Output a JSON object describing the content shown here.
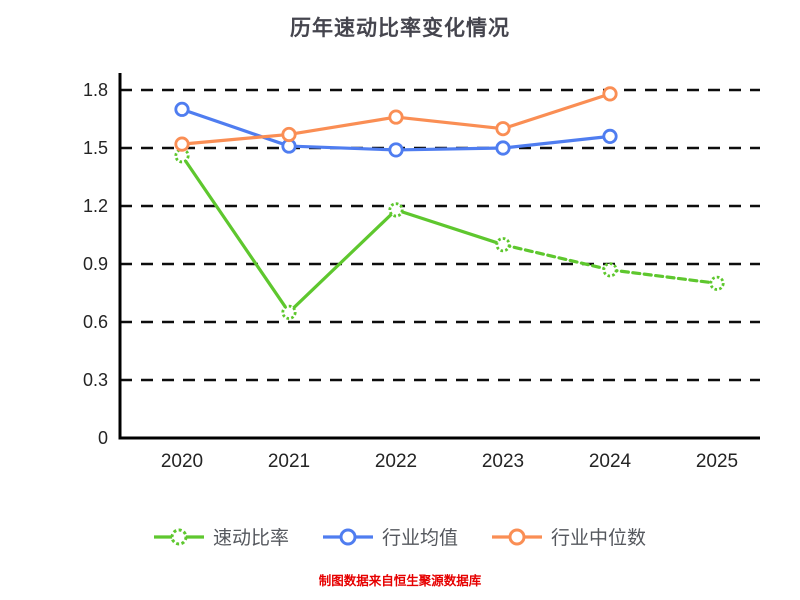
{
  "title": "历年速动比率变化情况",
  "footer": "制图数据来自恒生聚源数据库",
  "colors": {
    "background": "#ffffff",
    "title_text": "#45454e",
    "axis": "#000000",
    "gridline": "#0d0d0d",
    "tick_label": "#242424",
    "legend_label": "#55585e",
    "footer_text": "#e60000",
    "quick_ratio": "#5ec72e",
    "industry_avg": "#4f7df0",
    "industry_median": "#fa8e54"
  },
  "chart_data": {
    "type": "line",
    "title": "历年速动比率变化情况",
    "x": [
      "2020",
      "2021",
      "2022",
      "2023",
      "2024",
      "2025"
    ],
    "series": [
      {
        "name": "速动比率",
        "values": [
          1.46,
          0.65,
          1.18,
          1.0,
          0.87,
          0.8
        ],
        "color": "#5ec72e",
        "dashed_from_index": 3,
        "marker_dotted": true
      },
      {
        "name": "行业均值",
        "values": [
          1.7,
          1.51,
          1.49,
          1.5,
          1.56,
          null
        ],
        "color": "#4f7df0",
        "dashed_from_index": null,
        "marker_dotted": false
      },
      {
        "name": "行业中位数",
        "values": [
          1.52,
          1.57,
          1.66,
          1.6,
          1.78,
          null
        ],
        "color": "#fa8e54",
        "dashed_from_index": null,
        "marker_dotted": false
      }
    ],
    "ylim": [
      0,
      1.8
    ],
    "yticks": [
      0,
      0.3,
      0.6,
      0.9,
      1.2,
      1.5,
      1.8
    ],
    "ytick_labels": [
      "0",
      "0.3",
      "0.6",
      "0.9",
      "1.2",
      "1.5",
      "1.8"
    ],
    "grid": "dashed horizontal",
    "legend_position": "bottom",
    "marker_style": "open circle (white fill, colored ring)"
  }
}
